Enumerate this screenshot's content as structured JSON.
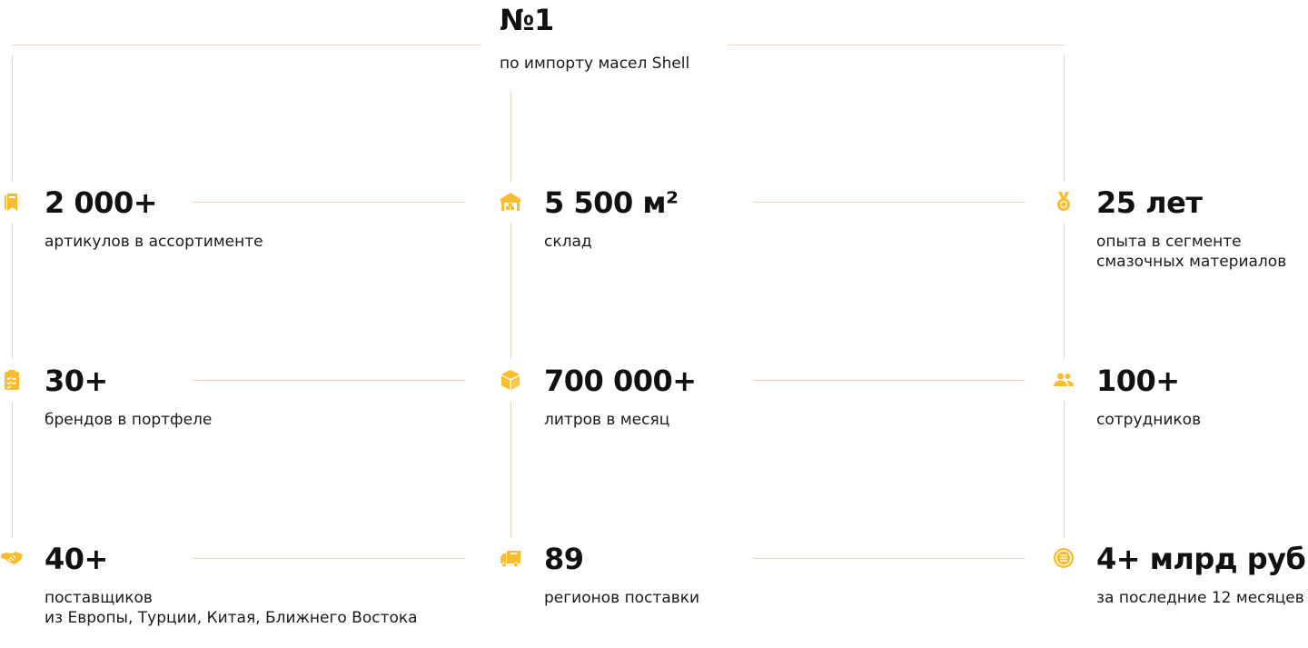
{
  "accent_color": "#FBBD2E",
  "line_color": "#F7CFBF",
  "headline": {
    "value": "№1",
    "label": "по импорту масел Shell"
  },
  "stats": [
    {
      "icon": "bookmarks-icon",
      "value": "2 000+",
      "label": "артикулов в ассортименте"
    },
    {
      "icon": "warehouse-icon",
      "value": "5 500 м²",
      "label": "склад"
    },
    {
      "icon": "medal-icon",
      "value": "25 лет",
      "label": "опыта в сегменте\nсмазочных материалов"
    },
    {
      "icon": "clipboard-list-icon",
      "value": "30+",
      "label": "брендов в портфеле"
    },
    {
      "icon": "box-icon",
      "value": "700 000+",
      "label": "литров в месяц"
    },
    {
      "icon": "users-icon",
      "value": "100+",
      "label": "сотрудников"
    },
    {
      "icon": "handshake-icon",
      "value": "40+",
      "label": "поставщиков\nиз Европы, Турции, Китая, Ближнего Востока"
    },
    {
      "icon": "truck-icon",
      "value": "89",
      "label": "регионов поставки"
    },
    {
      "icon": "coin-icon",
      "value": "4+ млрд руб",
      "label": "за последние 12 месяцев"
    }
  ]
}
